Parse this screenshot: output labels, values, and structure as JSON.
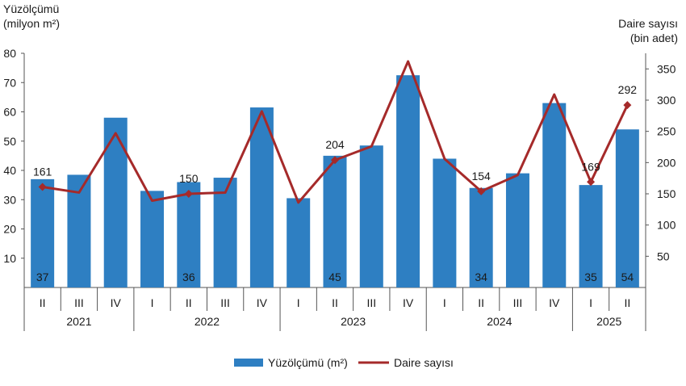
{
  "chart_data": {
    "type": "bar",
    "categories": [
      "II",
      "III",
      "IV",
      "I",
      "II",
      "III",
      "IV",
      "I",
      "II",
      "III",
      "IV",
      "I",
      "II",
      "III",
      "IV",
      "I",
      "II"
    ],
    "groups": [
      {
        "label": "2021",
        "count": 3
      },
      {
        "label": "2022",
        "count": 4
      },
      {
        "label": "2023",
        "count": 4
      },
      {
        "label": "2024",
        "count": 4
      },
      {
        "label": "2025",
        "count": 2
      }
    ],
    "ylabel": [
      "Yüzölçümü",
      "(milyon m²)"
    ],
    "y2label": [
      "Daire sayısı",
      "(bin adet)"
    ],
    "ylim": [
      0,
      80
    ],
    "y2lim": [
      0,
      375
    ],
    "yticks": [
      10,
      20,
      30,
      40,
      50,
      60,
      70,
      80
    ],
    "y2ticks": [
      50,
      100,
      150,
      200,
      250,
      300,
      350
    ],
    "series": [
      {
        "name": "Yüzölçümü (m²)",
        "kind": "bar",
        "axis": "left",
        "color": "#2E7FC2",
        "values": [
          37,
          38.5,
          58,
          33,
          36,
          37.5,
          61.5,
          30.5,
          45,
          48.5,
          72.5,
          44,
          34,
          39,
          63,
          35,
          54
        ],
        "labels": [
          "37",
          "",
          "",
          "",
          "36",
          "",
          "",
          "",
          "45",
          "",
          "",
          "",
          "34",
          "",
          "",
          "35",
          "54"
        ]
      },
      {
        "name": "Daire sayısı",
        "kind": "line",
        "axis": "right",
        "color": "#A52A2A",
        "values": [
          161,
          152,
          247,
          139,
          150,
          152,
          282,
          136,
          204,
          226,
          362,
          206,
          154,
          180,
          309,
          169,
          292
        ],
        "labels": [
          "161",
          "",
          "",
          "",
          "150",
          "",
          "",
          "",
          "204",
          "",
          "",
          "",
          "154",
          "",
          "",
          "169",
          "292"
        ]
      }
    ],
    "legend": "bottom-center",
    "grid": false
  }
}
